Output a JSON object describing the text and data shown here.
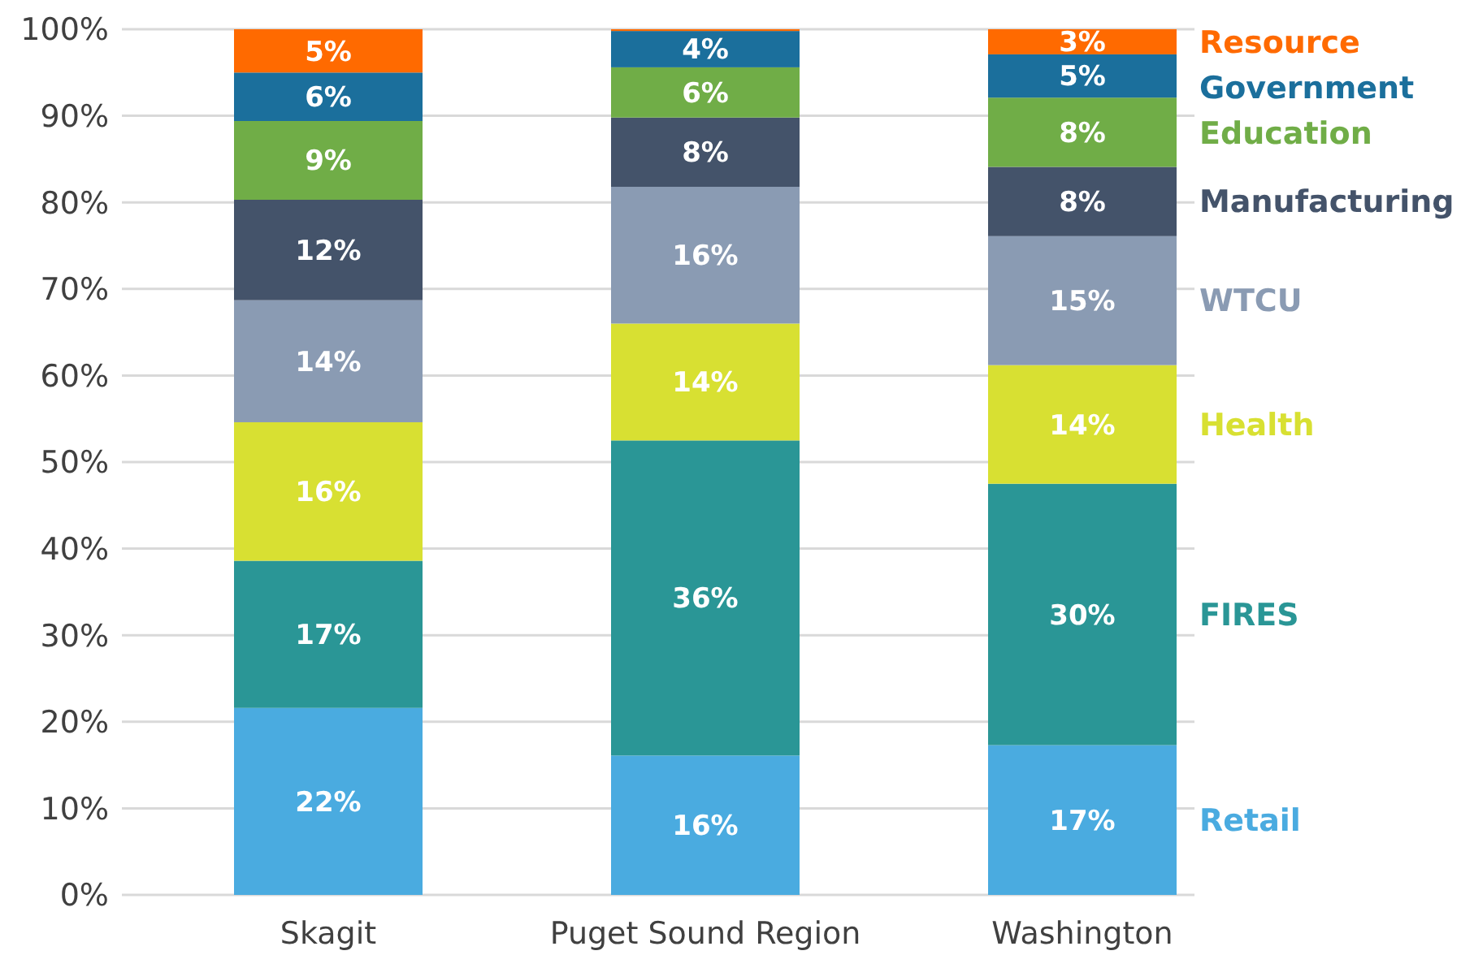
{
  "chart_data": {
    "type": "bar",
    "stacked": true,
    "categories": [
      "Skagit",
      "Puget Sound Region",
      "Washington"
    ],
    "ylim": [
      0,
      100
    ],
    "yticks": [
      {
        "value": 0,
        "label": "0%"
      },
      {
        "value": 10,
        "label": "10%"
      },
      {
        "value": 20,
        "label": "20%"
      },
      {
        "value": 30,
        "label": "30%"
      },
      {
        "value": 40,
        "label": "40%"
      },
      {
        "value": 50,
        "label": "50%"
      },
      {
        "value": 60,
        "label": "60%"
      },
      {
        "value": 70,
        "label": "70%"
      },
      {
        "value": 80,
        "label": "80%"
      },
      {
        "value": 90,
        "label": "90%"
      },
      {
        "value": 100,
        "label": "100%"
      }
    ],
    "grid": "y",
    "legend": "right",
    "series": [
      {
        "name": "Retail",
        "color": "#4aabe0",
        "values": [
          21.6,
          16.1,
          17.3
        ],
        "value_labels": [
          "22%",
          "16%",
          "17%"
        ]
      },
      {
        "name": "FIRES",
        "color": "#2a9696",
        "values": [
          17.0,
          36.4,
          30.2
        ],
        "value_labels": [
          "17%",
          "36%",
          "30%"
        ]
      },
      {
        "name": "Health",
        "color": "#d8e032",
        "values": [
          16.0,
          13.5,
          13.7
        ],
        "value_labels": [
          "16%",
          "14%",
          "14%"
        ]
      },
      {
        "name": "WTCU",
        "color": "#8a9bb3",
        "values": [
          14.1,
          15.8,
          14.9
        ],
        "value_labels": [
          "14%",
          "16%",
          "15%"
        ]
      },
      {
        "name": "Manufacturing",
        "color": "#44536a",
        "values": [
          11.6,
          8.0,
          8.0
        ],
        "value_labels": [
          "12%",
          "8%",
          "8%"
        ]
      },
      {
        "name": "Education",
        "color": "#70ad47",
        "values": [
          9.1,
          5.8,
          8.0
        ],
        "value_labels": [
          "9%",
          "6%",
          "8%"
        ]
      },
      {
        "name": "Government",
        "color": "#1b6f9c",
        "values": [
          5.6,
          4.2,
          5.0
        ],
        "value_labels": [
          "6%",
          "4%",
          "5%"
        ]
      },
      {
        "name": "Resource",
        "color": "#ff6a00",
        "values": [
          5.0,
          0.2,
          2.9
        ],
        "value_labels": [
          "5%",
          null,
          "3%"
        ]
      }
    ]
  }
}
